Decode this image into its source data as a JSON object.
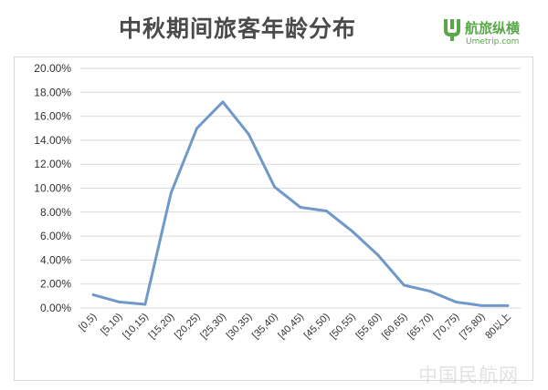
{
  "title": "中秋期间旅客年龄分布",
  "brand": {
    "name": "航旅纵横",
    "url": "Umetrip.com",
    "color": "#58a84a",
    "icon": "umetrip-logo-icon"
  },
  "watermark": "中国民航网",
  "chart_data": {
    "type": "line",
    "title": "中秋期间旅客年龄分布",
    "xlabel": "",
    "ylabel": "",
    "categories": [
      "[0,5)",
      "[5,10)",
      "[10,15)",
      "[15,20)",
      "[20,25)",
      "[25,30)",
      "[30,35)",
      "[35,40)",
      "[40,45)",
      "[45,50)",
      "[50,55)",
      "[55,60)",
      "[60,65)",
      "[65,70)",
      "[70,75)",
      "[75,80)",
      "80以上"
    ],
    "values": [
      1.1,
      0.5,
      0.3,
      9.6,
      15.0,
      17.2,
      14.5,
      10.1,
      8.4,
      8.1,
      6.4,
      4.4,
      1.9,
      1.4,
      0.5,
      0.2,
      0.2
    ],
    "ylim": [
      0,
      20
    ],
    "yticks": [
      0,
      2,
      4,
      6,
      8,
      10,
      12,
      14,
      16,
      18,
      20
    ],
    "ytick_labels": [
      "0.00%",
      "2.00%",
      "4.00%",
      "6.00%",
      "8.00%",
      "10.00%",
      "12.00%",
      "14.00%",
      "16.00%",
      "18.00%",
      "20.00%"
    ],
    "grid": true,
    "legend": "none",
    "line_color": "#6f99c8",
    "grid_color": "#d9d9d9"
  }
}
